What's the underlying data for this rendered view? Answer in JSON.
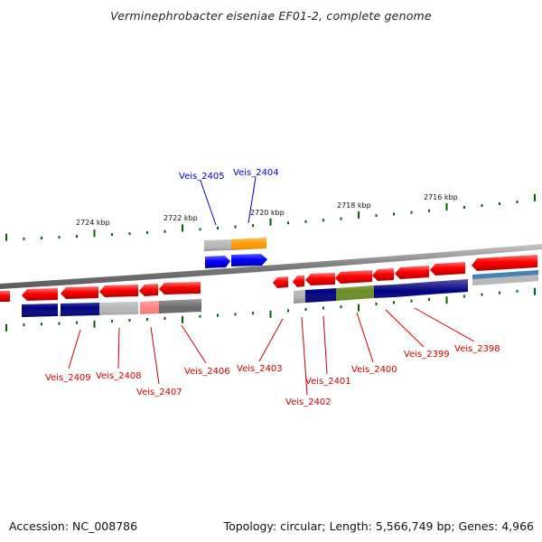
{
  "title": "Verminephrobacter eiseniae EF01-2, complete genome",
  "accession": "Accession: NC_008786",
  "topology": "Topology: circular; Length: 5,566,749 bp; Genes: 4,966",
  "colors": {
    "forward_gene": "#ff0000",
    "forward_gene_blue": "#0000ff",
    "cog_orange": "#ff9900",
    "cog_navy": "#000080",
    "cog_olive": "#6b8e23",
    "cog_gray": "#b8b8b8",
    "cog_dark_gray": "#666666",
    "cog_pink": "#ff8080",
    "cog_steelblue": "#4682b4",
    "tick": "#006400",
    "backbone": "#808080",
    "label_forward": "#0000cc",
    "label_reverse": "#cc0000"
  },
  "scale_labels": [
    "2724 kbp",
    "2722 kbp",
    "2720 kbp",
    "2718 kbp",
    "2716 kbp"
  ],
  "genes_forward": [
    {
      "label": "Veis_2405",
      "cog": "cog_gray",
      "strand": "+"
    },
    {
      "label": "Veis_2404",
      "cog": "cog_orange",
      "strand": "+"
    }
  ],
  "genes_reverse": [
    {
      "label": "Veis_2409",
      "cog": "cog_navy"
    },
    {
      "label": "Veis_2408",
      "cog": "cog_gray"
    },
    {
      "label": "Veis_2407",
      "cog": "cog_pink"
    },
    {
      "label": "Veis_2406",
      "cog": "cog_dark_gray"
    },
    {
      "label": "Veis_2403",
      "cog": "none"
    },
    {
      "label": "Veis_2402",
      "cog": "cog_gray"
    },
    {
      "label": "Veis_2401",
      "cog": "cog_navy"
    },
    {
      "label": "Veis_2400",
      "cog": "cog_olive"
    },
    {
      "label": "Veis_2399",
      "cog": "cog_navy"
    },
    {
      "label": "Veis_2398",
      "cog": "cog_navy"
    },
    {
      "label": "",
      "cog": "cog_steelblue"
    }
  ]
}
